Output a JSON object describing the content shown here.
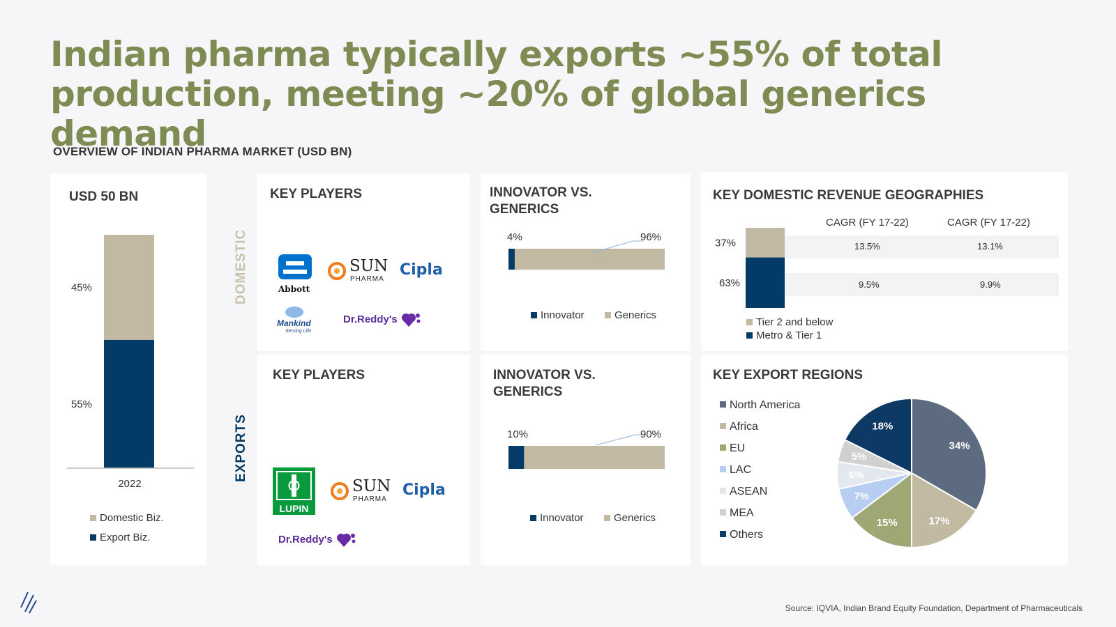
{
  "title_line1": "Indian pharma typically exports ~55%  of total",
  "title_line2": "production, meeting ~20% of global generics demand",
  "subtitle": "OVERVIEW OF INDIAN PHARMA MARKET (USD BN)",
  "source": "Source: IQVIA, Indian Brand Equity Foundation, Department of Pharmaceuticals",
  "row_labels": {
    "domestic": "DOMESTIC",
    "exports": "EXPORTS"
  },
  "colors": {
    "navy": "#033b66",
    "beige": "#c1b9a2",
    "title_green": "#7e8b53",
    "domestic_label": "#c9c1ab"
  },
  "market": {
    "title": "USD 50 BN",
    "legend": {
      "domestic": "Domestic Biz.",
      "export": "Export Biz."
    }
  },
  "key_players_domestic": {
    "title": "KEY PLAYERS",
    "logos": [
      "Abbott",
      "SUN",
      "PHARMA",
      "Cipla",
      "Mankind",
      "Serving Life",
      "Dr.Reddy's"
    ]
  },
  "key_players_exports": {
    "title": "KEY PLAYERS",
    "logos": [
      "LUPIN",
      "SUN",
      "PHARMA",
      "Cipla",
      "Dr.Reddy's"
    ]
  },
  "innovator_domestic": {
    "title_line1": "INNOVATOR VS.",
    "title_line2": "GENERICS",
    "legend": [
      "Innovator",
      "Generics"
    ]
  },
  "innovator_exports": {
    "title_line1": "INNOVATOR VS.",
    "title_line2": "GENERICS",
    "legend": [
      "Innovator",
      "Generics"
    ]
  },
  "geographies": {
    "title": "KEY DOMESTIC REVENUE GEOGRAPHIES",
    "cagr_headers": [
      "CAGR (FY 17-22)",
      "CAGR (FY 17-22)"
    ],
    "rows": [
      {
        "cagr1": "13.5%",
        "cagr2": "13.1%"
      },
      {
        "cagr1": "9.5%",
        "cagr2": "9.9%"
      }
    ],
    "legend": [
      "Tier 2 and below",
      "Metro & Tier 1"
    ]
  },
  "export_regions": {
    "title": "KEY EXPORT REGIONS"
  },
  "chart_data": [
    {
      "type": "bar",
      "stacked": true,
      "categories": [
        "2022"
      ],
      "series": [
        {
          "name": "Export Biz.",
          "values": [
            55
          ],
          "label": "55%",
          "color": "#033b66"
        },
        {
          "name": "Domestic Biz.",
          "values": [
            45
          ],
          "label": "45%",
          "color": "#c1b9a2"
        }
      ],
      "ylim": [
        0,
        100
      ]
    },
    {
      "type": "bar",
      "orientation": "horizontal",
      "stacked": true,
      "categories": [
        "Domestic"
      ],
      "series": [
        {
          "name": "Innovator",
          "values": [
            4
          ],
          "label": "4%",
          "color": "#033b66"
        },
        {
          "name": "Generics",
          "values": [
            96
          ],
          "label": "96%",
          "color": "#c1b9a2"
        }
      ]
    },
    {
      "type": "bar",
      "orientation": "horizontal",
      "stacked": true,
      "categories": [
        "Exports"
      ],
      "series": [
        {
          "name": "Innovator",
          "values": [
            10
          ],
          "label": "10%",
          "color": "#033b66"
        },
        {
          "name": "Generics",
          "values": [
            90
          ],
          "label": "90%",
          "color": "#c1b9a2"
        }
      ]
    },
    {
      "type": "bar",
      "stacked": true,
      "categories": [
        "Domestic revenue"
      ],
      "series": [
        {
          "name": "Metro & Tier 1",
          "values": [
            63
          ],
          "label": "63%",
          "color": "#033b66"
        },
        {
          "name": "Tier 2 and below",
          "values": [
            37
          ],
          "label": "37%",
          "color": "#c1b9a2"
        }
      ]
    },
    {
      "type": "pie",
      "slices": [
        {
          "name": "North America",
          "value": 34,
          "label": "34%",
          "color": "#5c6b80"
        },
        {
          "name": "Africa",
          "value": 17,
          "label": "17%",
          "color": "#c1b9a2"
        },
        {
          "name": "EU",
          "value": 15,
          "label": "15%",
          "color": "#9da874"
        },
        {
          "name": "LAC",
          "value": 7,
          "label": "7%",
          "color": "#b7cdf2"
        },
        {
          "name": "ASEAN",
          "value": 6,
          "label": "6%",
          "color": "#e3e8ef"
        },
        {
          "name": "MEA",
          "value": 5,
          "label": "5%",
          "color": "#d0d0d0"
        },
        {
          "name": "Others",
          "value": 18,
          "label": "18%",
          "color": "#0d3a64"
        }
      ]
    }
  ]
}
